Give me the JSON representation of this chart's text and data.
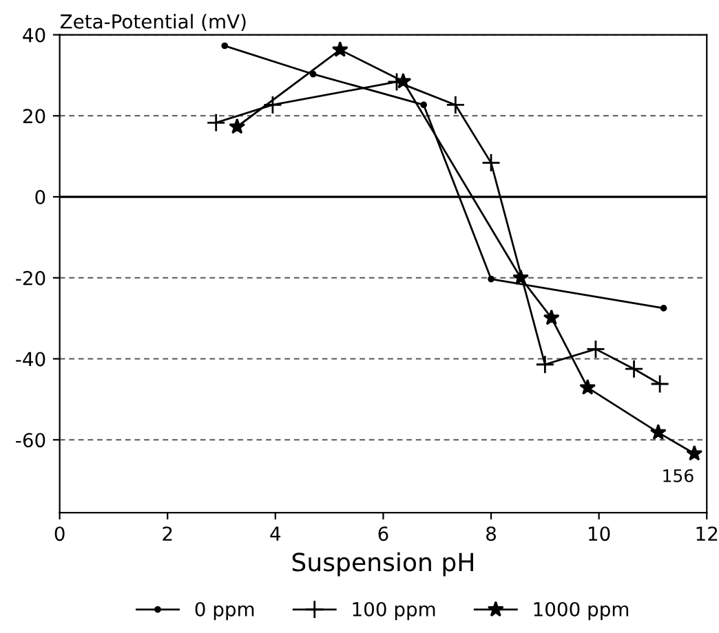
{
  "chart_data": {
    "type": "line",
    "xlabel": "Suspension pH",
    "ylabel": "Zeta-Potential (mV)",
    "xlim": [
      0,
      12
    ],
    "xticks": [
      0,
      2,
      4,
      6,
      8,
      10,
      12
    ],
    "ylim": [
      -78,
      40
    ],
    "yticks": [
      -60,
      -40,
      -20,
      0,
      20,
      40
    ],
    "grid": "y",
    "legend": "bottom",
    "line_style": "solid",
    "ref_lines": [
      {
        "axis": "y",
        "value": 0,
        "color": "#000000",
        "line_style": "solid"
      }
    ],
    "annotations": [
      {
        "text": "156",
        "x": 11.77,
        "y": -63.4
      }
    ],
    "series": [
      {
        "name": "0 ppm",
        "color": "#000000",
        "marker": "circle",
        "x": [
          3.06,
          4.7,
          6.75,
          8.0,
          11.2
        ],
        "values": [
          37.3,
          30.3,
          22.7,
          -20.3,
          -27.5
        ]
      },
      {
        "name": "100 ppm",
        "color": "#000000",
        "marker": "cross",
        "x": [
          2.9,
          3.95,
          6.25,
          7.34,
          8.0,
          9.0,
          9.94,
          10.65,
          11.13
        ],
        "values": [
          18.3,
          22.7,
          28.4,
          22.7,
          8.4,
          -41.4,
          -37.6,
          -42.5,
          -46.2
        ]
      },
      {
        "name": "1000 ppm",
        "color": "#000000",
        "marker": "star",
        "x": [
          3.29,
          5.2,
          6.37,
          8.55,
          9.12,
          9.79,
          11.1,
          11.77
        ],
        "values": [
          17.3,
          36.3,
          28.5,
          -20,
          -29.9,
          -47.1,
          -58.2,
          -63.4
        ]
      }
    ]
  }
}
